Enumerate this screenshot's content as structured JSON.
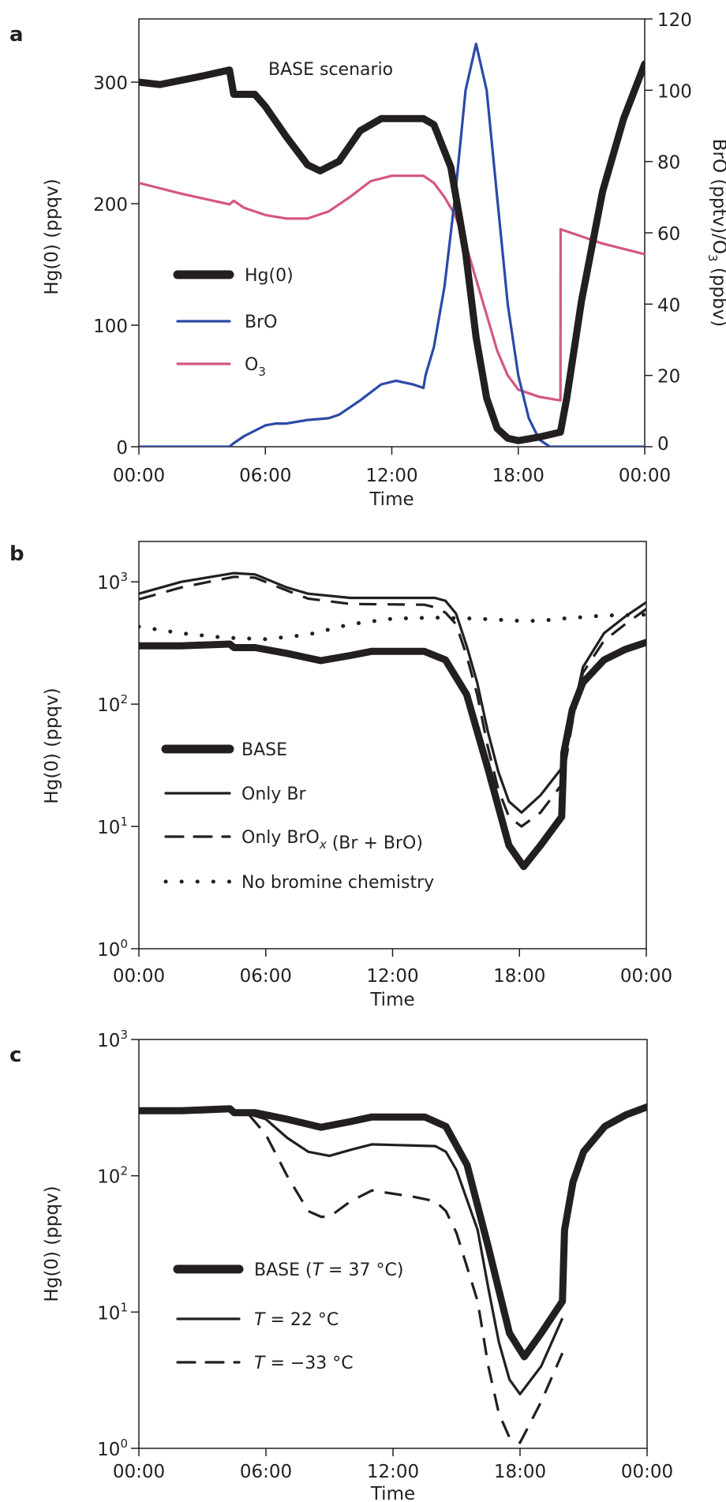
{
  "chart_data": [
    {
      "panel": "a",
      "type": "line",
      "annotation": "BASE scenario",
      "xlabel": "Time",
      "ylabel": "Hg(0) (ppqv)",
      "ylabel_right": "BrO (pptv)/O3 (ppbv)",
      "xticks": [
        "00:00",
        "06:00",
        "12:00",
        "18:00",
        "00:00"
      ],
      "xlim": [
        0,
        24
      ],
      "ylim": [
        0,
        352
      ],
      "yticks": [
        "0",
        "100",
        "200",
        "300"
      ],
      "ylim_right": [
        0,
        120
      ],
      "yticks_right": [
        "0",
        "20",
        "40",
        "60",
        "80",
        "100",
        "120"
      ],
      "legend_placement": "center-left",
      "series": [
        {
          "name": "Hg(0)",
          "axis": "left",
          "color": "#231f20",
          "style": "thick",
          "x": [
            0,
            1,
            3,
            4.3,
            4.5,
            5.5,
            6,
            7,
            8,
            8.6,
            9.5,
            10.5,
            11.5,
            13.5,
            14,
            14.8,
            15.5,
            16,
            16.5,
            17,
            17.5,
            18,
            19,
            20,
            20.3,
            21,
            22,
            23,
            24
          ],
          "y": [
            300,
            298,
            305,
            310,
            290,
            290,
            280,
            255,
            232,
            227,
            235,
            260,
            270,
            270,
            265,
            230,
            160,
            90,
            40,
            15,
            7,
            5,
            8,
            12,
            40,
            120,
            210,
            270,
            315
          ]
        },
        {
          "name": "BrO",
          "axis": "right",
          "color": "#2b4aa6",
          "style": "solid",
          "x": [
            0,
            4.3,
            4.5,
            5,
            6,
            6.5,
            7,
            8,
            9,
            9.5,
            10.5,
            11.5,
            12.2,
            13,
            13.5,
            13.6,
            14,
            14.5,
            15,
            15.5,
            16,
            16.5,
            17,
            17.5,
            18,
            18.5,
            19,
            19.5,
            24
          ],
          "y": [
            0,
            0,
            1,
            3,
            6,
            6.5,
            6.5,
            7.5,
            8,
            9,
            13,
            17.5,
            18.5,
            17.5,
            16.5,
            20,
            28,
            45,
            70,
            100,
            113,
            100,
            70,
            40,
            20,
            8,
            2,
            0,
            0
          ]
        },
        {
          "name": "O3",
          "axis": "right",
          "color": "#d4587e",
          "style": "solid",
          "x": [
            0,
            2,
            4.3,
            4.5,
            5,
            6,
            7,
            8,
            9,
            10,
            11,
            12,
            13.5,
            14,
            14.5,
            15,
            15.5,
            16,
            16.5,
            17,
            17.5,
            18,
            19,
            20,
            20.01,
            21,
            22,
            24
          ],
          "y": [
            74,
            71,
            68,
            69,
            67,
            65,
            64,
            64,
            66,
            70,
            74.5,
            76,
            76,
            74,
            70,
            65,
            57,
            47,
            37,
            27,
            20,
            16,
            14,
            13,
            61,
            59,
            57,
            54
          ]
        }
      ]
    },
    {
      "panel": "b",
      "type": "line",
      "xlabel": "Time",
      "ylabel": "Hg(0) (ppqv)",
      "xticks": [
        "00:00",
        "06:00",
        "12:00",
        "18:00",
        "00:00"
      ],
      "xlim": [
        0,
        24
      ],
      "yscale": "log",
      "ylim": [
        1,
        2140
      ],
      "yticks": [
        1,
        10,
        100,
        1000
      ],
      "legend_placement": "bottom-left",
      "series": [
        {
          "name": "BASE",
          "style": "thick",
          "color": "#231f20",
          "x": [
            0,
            2,
            4.3,
            4.5,
            5.5,
            7,
            8.6,
            10,
            11,
            13.5,
            14.5,
            15.5,
            16.5,
            17.5,
            18.2,
            19,
            20,
            20.1,
            20.5,
            21,
            22,
            23,
            24
          ],
          "y": [
            300,
            300,
            310,
            290,
            290,
            260,
            227,
            250,
            270,
            270,
            230,
            120,
            30,
            7,
            4.7,
            7,
            12,
            40,
            90,
            150,
            230,
            280,
            320
          ]
        },
        {
          "name": "Only Br",
          "style": "solid",
          "color": "#231f20",
          "x": [
            0,
            2,
            4.5,
            5.5,
            7,
            8,
            10,
            14,
            14.5,
            15,
            15.5,
            16,
            16.5,
            17,
            17.5,
            18.1,
            19,
            20,
            20.5,
            21,
            22,
            23,
            24
          ],
          "y": [
            800,
            1000,
            1180,
            1150,
            900,
            800,
            740,
            740,
            700,
            550,
            300,
            150,
            60,
            28,
            16,
            13,
            18,
            30,
            80,
            200,
            380,
            520,
            680
          ]
        },
        {
          "name": "Only BrOx (Br + BrO)",
          "style": "dashed",
          "color": "#231f20",
          "x": [
            0,
            2,
            4.5,
            5.5,
            7,
            8,
            10,
            13.5,
            14,
            14.5,
            15,
            15.5,
            16,
            16.5,
            17,
            17.5,
            18.1,
            19,
            20,
            20.5,
            21,
            22,
            23,
            24
          ],
          "y": [
            720,
            900,
            1100,
            1080,
            850,
            730,
            660,
            650,
            620,
            560,
            450,
            250,
            120,
            45,
            20,
            12,
            10,
            13,
            22,
            70,
            180,
            330,
            450,
            600
          ]
        },
        {
          "name": "No bromine chemistry",
          "style": "dotted",
          "color": "#231f20",
          "x": [
            0,
            2,
            4,
            6,
            8,
            10,
            12,
            14,
            16,
            18,
            19,
            20,
            22,
            24
          ],
          "y": [
            430,
            380,
            350,
            340,
            370,
            450,
            500,
            510,
            500,
            480,
            480,
            500,
            530,
            540
          ]
        }
      ]
    },
    {
      "panel": "c",
      "type": "line",
      "xlabel": "Time",
      "ylabel": "Hg(0) (ppqv)",
      "xticks": [
        "00:00",
        "06:00",
        "12:00",
        "18:00",
        "00:00"
      ],
      "xlim": [
        0,
        24
      ],
      "yscale": "log",
      "ylim": [
        1,
        1000
      ],
      "yticks": [
        1,
        10,
        100,
        1000
      ],
      "legend_placement": "bottom-left",
      "series": [
        {
          "name": "BASE (T = 37 °C)",
          "style": "thick",
          "color": "#231f20",
          "x": [
            0,
            2,
            4.3,
            4.5,
            5.5,
            7,
            8.6,
            10,
            11,
            13.5,
            14.5,
            15.5,
            16.5,
            17.5,
            18.2,
            19,
            20,
            20.1,
            20.5,
            21,
            22,
            23,
            24
          ],
          "y": [
            300,
            300,
            310,
            290,
            290,
            260,
            227,
            250,
            270,
            270,
            230,
            120,
            30,
            7,
            4.7,
            7,
            12,
            40,
            90,
            150,
            230,
            280,
            320
          ]
        },
        {
          "name": "T = 22 °C",
          "style": "solid",
          "color": "#231f20",
          "x": [
            5,
            6,
            7,
            8,
            9,
            10,
            11,
            14,
            14.5,
            15,
            16,
            16.5,
            17,
            17.5,
            18,
            19,
            20
          ],
          "y": [
            290,
            260,
            190,
            150,
            140,
            155,
            170,
            165,
            150,
            110,
            40,
            15,
            6,
            3.2,
            2.5,
            4,
            9
          ]
        },
        {
          "name": "T = −33 °C",
          "style": "dashed",
          "color": "#231f20",
          "x": [
            5.2,
            6,
            7,
            8,
            8.6,
            9,
            10,
            11,
            13,
            14,
            14.5,
            15,
            16,
            16.5,
            17,
            17.5,
            18,
            19,
            20
          ],
          "y": [
            280,
            200,
            100,
            55,
            50,
            50,
            65,
            78,
            70,
            65,
            55,
            38,
            12,
            4,
            1.8,
            1.2,
            1.1,
            2.2,
            5
          ]
        }
      ]
    }
  ]
}
